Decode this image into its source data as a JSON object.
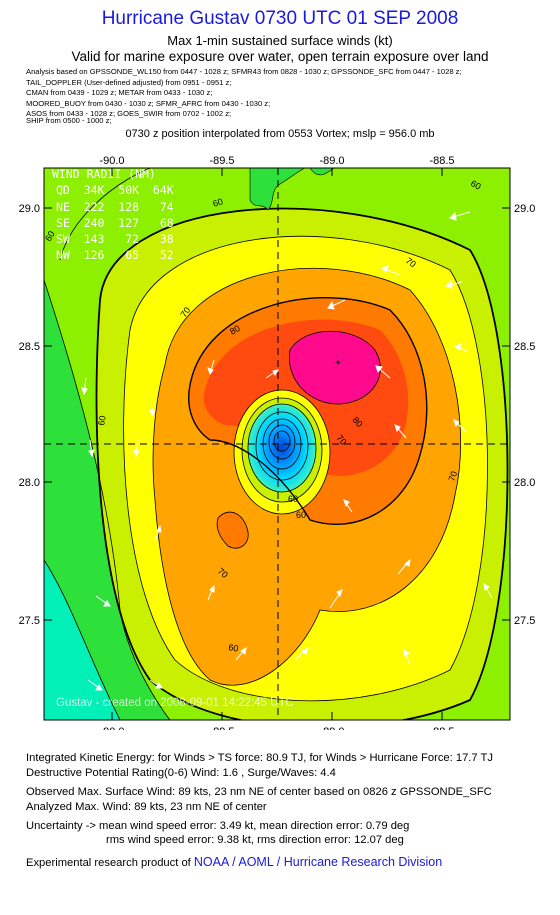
{
  "header": {
    "title": "Hurricane Gustav 0730 UTC 01 SEP 2008",
    "subtitle": "Max 1-min sustained surface winds (kt)",
    "valid_note": "Valid for marine exposure over water, open terrain exposure over land"
  },
  "analysis_sources": [
    "Analysis based on  GPSSONDE_WL150 from 0447 - 1028 z;  SFMR43 from 0828 - 1030 z;  GPSSONDE_SFC from 0447 - 1028 z;",
    "TAIL_DOPPLER  (User-defined adjusted) from 0951 - 0951 z;",
    "CMAN from 0439 - 1029 z;   METAR from 0433 - 1030 z;",
    "MOORED_BUOY from 0430 - 1030 z;   SFMR_AFRC from 0430 - 1030 z;",
    "ASOS from 0433 - 1028 z;   GOES_SWIR from 0702 - 1002 z;",
    "SHIP from 0500 - 1000 z;"
  ],
  "position_note": "0730 z position interpolated from 0553 Vortex; mslp = 956.0 mb",
  "map": {
    "x_ticks": [
      "-90.0",
      "-89.5",
      "-89.0",
      "-88.5"
    ],
    "y_ticks": [
      "29.0",
      "28.5",
      "28.0",
      "27.5"
    ],
    "x_range": [
      -90.25,
      -88.4
    ],
    "y_range": [
      27.15,
      29.15
    ],
    "center": {
      "lon": -89.28,
      "lat": 28.14
    },
    "max_wind_marker": "+",
    "contour_labels": [
      "60",
      "70",
      "80",
      "60",
      "70",
      "80",
      "70",
      "60",
      "60",
      "60",
      "70",
      "60"
    ],
    "colors": {
      "green_light": "#8cf000",
      "green": "#2ee03a",
      "teal": "#00f0b8",
      "yellow_green": "#c8f000",
      "yellow": "#ffff00",
      "orange": "#ffa400",
      "orange_dark": "#ff7a00",
      "red": "#ff4a10",
      "magenta": "#ff0a8c",
      "core_blue": "#00a0ff",
      "core_dark": "#0060e0"
    },
    "wind_radii": {
      "title": "WIND RADII (NM)",
      "header": "QD  34K  50K  64K",
      "rows": [
        "NE  222  128   74",
        "SE  240  127   68",
        "SW  143   72   38",
        "NW  126   65   52"
      ]
    },
    "watermark": "Gustav - created on 2008-09-01 14:22:45 UTC"
  },
  "footer": {
    "ike": "Integrated Kinetic Energy:  for Winds > TS force: 80.9 TJ,  for Winds > Hurricane Force: 17.7 TJ",
    "destructive": "Destructive Potential Rating(0-6)   Wind: 1.6 , Surge/Waves: 4.4",
    "observed": "Observed Max. Surface Wind: 89 kts, 23 nm NE of center based on 0826 z GPSSONDE_SFC",
    "analyzed": "Analyzed Max. Wind: 89 kts, 23 nm NE of center",
    "uncertainty_1": "Uncertainty -> mean wind speed error: 3.49 kt,   mean direction error: 0.79 deg",
    "uncertainty_2": "rms wind speed error: 9.38 kt,   rms direction error: 12.07 deg",
    "credit_prefix": "Experimental research product of",
    "credit_org": "NOAA / AOML / Hurricane Research Division"
  }
}
